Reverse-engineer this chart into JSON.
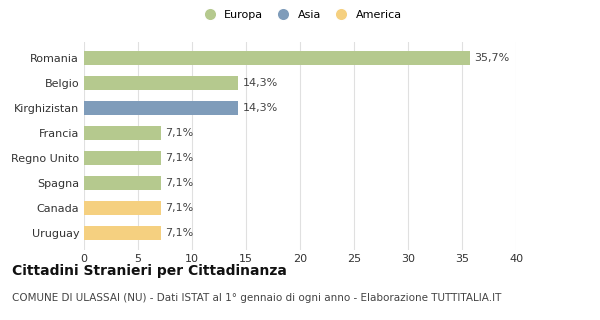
{
  "categories": [
    "Romania",
    "Belgio",
    "Kirghizistan",
    "Francia",
    "Regno Unito",
    "Spagna",
    "Canada",
    "Uruguay"
  ],
  "values": [
    35.7,
    14.3,
    14.3,
    7.1,
    7.1,
    7.1,
    7.1,
    7.1
  ],
  "labels": [
    "35,7%",
    "14,3%",
    "14,3%",
    "7,1%",
    "7,1%",
    "7,1%",
    "7,1%",
    "7,1%"
  ],
  "colors": [
    "#b5c98e",
    "#b5c98e",
    "#7f9cba",
    "#b5c98e",
    "#b5c98e",
    "#b5c98e",
    "#f5d080",
    "#f5d080"
  ],
  "legend": [
    {
      "label": "Europa",
      "color": "#b5c98e"
    },
    {
      "label": "Asia",
      "color": "#7f9cba"
    },
    {
      "label": "America",
      "color": "#f5d080"
    }
  ],
  "xlim": [
    0,
    40
  ],
  "xticks": [
    0,
    5,
    10,
    15,
    20,
    25,
    30,
    35,
    40
  ],
  "title": "Cittadini Stranieri per Cittadinanza",
  "subtitle": "COMUNE DI ULASSAI (NU) - Dati ISTAT al 1° gennaio di ogni anno - Elaborazione TUTTITALIA.IT",
  "background_color": "#ffffff",
  "grid_color": "#e0e0e0",
  "bar_height": 0.55,
  "label_fontsize": 8,
  "tick_fontsize": 8,
  "title_fontsize": 10,
  "subtitle_fontsize": 7.5
}
